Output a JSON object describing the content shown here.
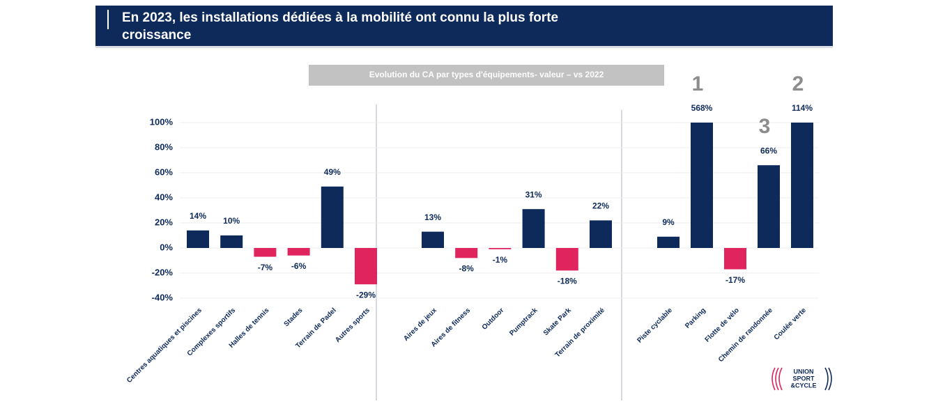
{
  "chart_data": {
    "type": "bar",
    "title": [
      "En 2023, les installations dédiées à la mobilité ont connu la plus forte",
      "croissance"
    ],
    "subtitle": "Evolution du CA par types d'équipements- valeur – vs 2022",
    "categories": [
      "Centres aquatiques et piscines",
      "Complexes sportifs",
      "Halles de tennis",
      "Stades",
      "Terrain de Padel",
      "Autres sports",
      "Aires de jeux",
      "Aires de fitness",
      "Outdoor",
      "Pumptrack",
      "Skate Park",
      "Terrain de proximité",
      "Piste cyclable",
      "Parking",
      "Flotte de vélo",
      "Chemin de randonnée",
      "Coulée verte"
    ],
    "values": [
      14,
      10,
      -7,
      -6,
      49,
      -29,
      13,
      -8,
      -1,
      31,
      -18,
      22,
      9,
      568,
      -17,
      66,
      114
    ],
    "value_labels": [
      "14%",
      "10%",
      "-7%",
      "-6%",
      "49%",
      "-29%",
      "13%",
      "-8%",
      "-1%",
      "31%",
      "-18%",
      "22%",
      "9%",
      "568%",
      "-17%",
      "66%",
      "114%"
    ],
    "positive_color": "#0d2a5a",
    "negative_color": "#e0245e",
    "ylim": [
      -40,
      100
    ],
    "yticks": [
      {
        "value": -40,
        "label": "-40%"
      },
      {
        "value": -20,
        "label": "-20%"
      },
      {
        "value": 0,
        "label": "0%"
      },
      {
        "value": 20,
        "label": "20%"
      },
      {
        "value": 40,
        "label": "40%"
      },
      {
        "value": 60,
        "label": "60%"
      },
      {
        "value": 80,
        "label": "80%"
      },
      {
        "value": 100,
        "label": "100%"
      }
    ],
    "grid": true,
    "annotations": [
      {
        "text": "1",
        "category": "Parking"
      },
      {
        "text": "2",
        "category": "Coulée verte"
      },
      {
        "text": "3",
        "category": "Chemin de randonnée"
      }
    ],
    "logo": [
      "UNION",
      "SPORT",
      "&CYCLE"
    ]
  }
}
